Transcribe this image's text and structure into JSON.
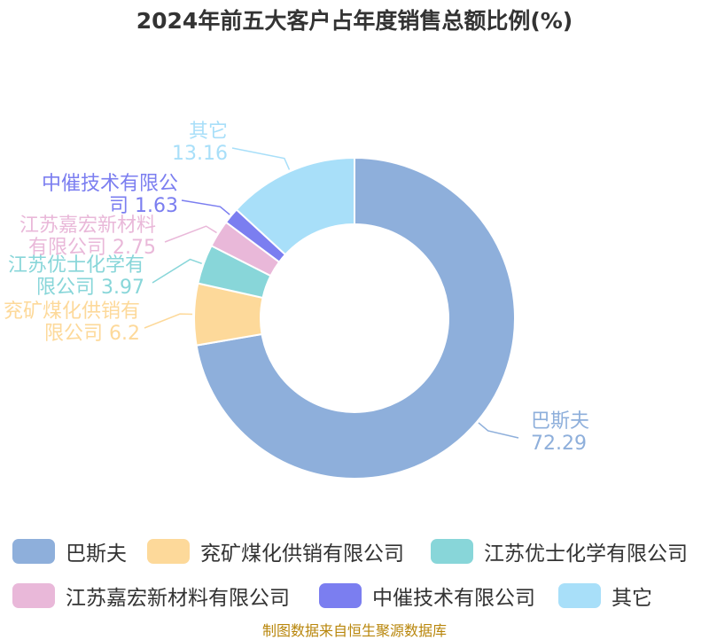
{
  "chart_data": {
    "type": "pie",
    "title": "2024年前五大客户占年度销售总额比例(%)",
    "donut": true,
    "slices": [
      {
        "name": "巴斯夫",
        "label_lines": [
          "巴斯夫",
          "72.29"
        ],
        "value": 72.29,
        "color": "#8eafdb"
      },
      {
        "name": "兖矿煤化供销有限公司",
        "label_lines": [
          "兖矿煤化供销有",
          "限公司 6.2"
        ],
        "value": 6.2,
        "color": "#fdd99a"
      },
      {
        "name": "江苏优士化学有限公司",
        "label_lines": [
          "江苏优士化学有",
          "限公司 3.97"
        ],
        "value": 3.97,
        "color": "#88d6d9"
      },
      {
        "name": "江苏嘉宏新材料有限公司",
        "label_lines": [
          "江苏嘉宏新材料",
          "有限公司 2.75"
        ],
        "value": 2.75,
        "color": "#e9b8d9"
      },
      {
        "name": "中催技术有限公司",
        "label_lines": [
          "中催技术有限公",
          "司 1.63"
        ],
        "value": 1.63,
        "color": "#7b7ef0"
      },
      {
        "name": "其它",
        "label_lines": [
          "其它",
          "13.16"
        ],
        "value": 13.16,
        "color": "#a8dff9"
      }
    ],
    "legend_position": "bottom"
  },
  "source": "制图数据来自恒生聚源数据库"
}
